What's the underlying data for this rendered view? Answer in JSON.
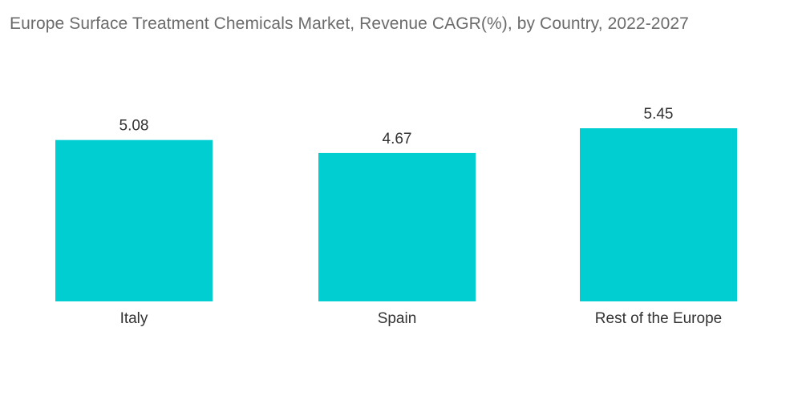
{
  "chart_data": {
    "type": "bar",
    "title": "Europe Surface Treatment Chemicals Market, Revenue CAGR(%), by Country, 2022-2027",
    "categories": [
      "Italy",
      "Spain",
      "Rest of the Europe"
    ],
    "values": [
      5.08,
      4.67,
      5.45
    ],
    "value_labels": [
      "5.08",
      "4.67",
      "5.45"
    ],
    "xlabel": "",
    "ylabel": "",
    "ylim": [
      0,
      5.45
    ],
    "grid": false,
    "legend": "none",
    "bar_color": "#00ced1"
  }
}
